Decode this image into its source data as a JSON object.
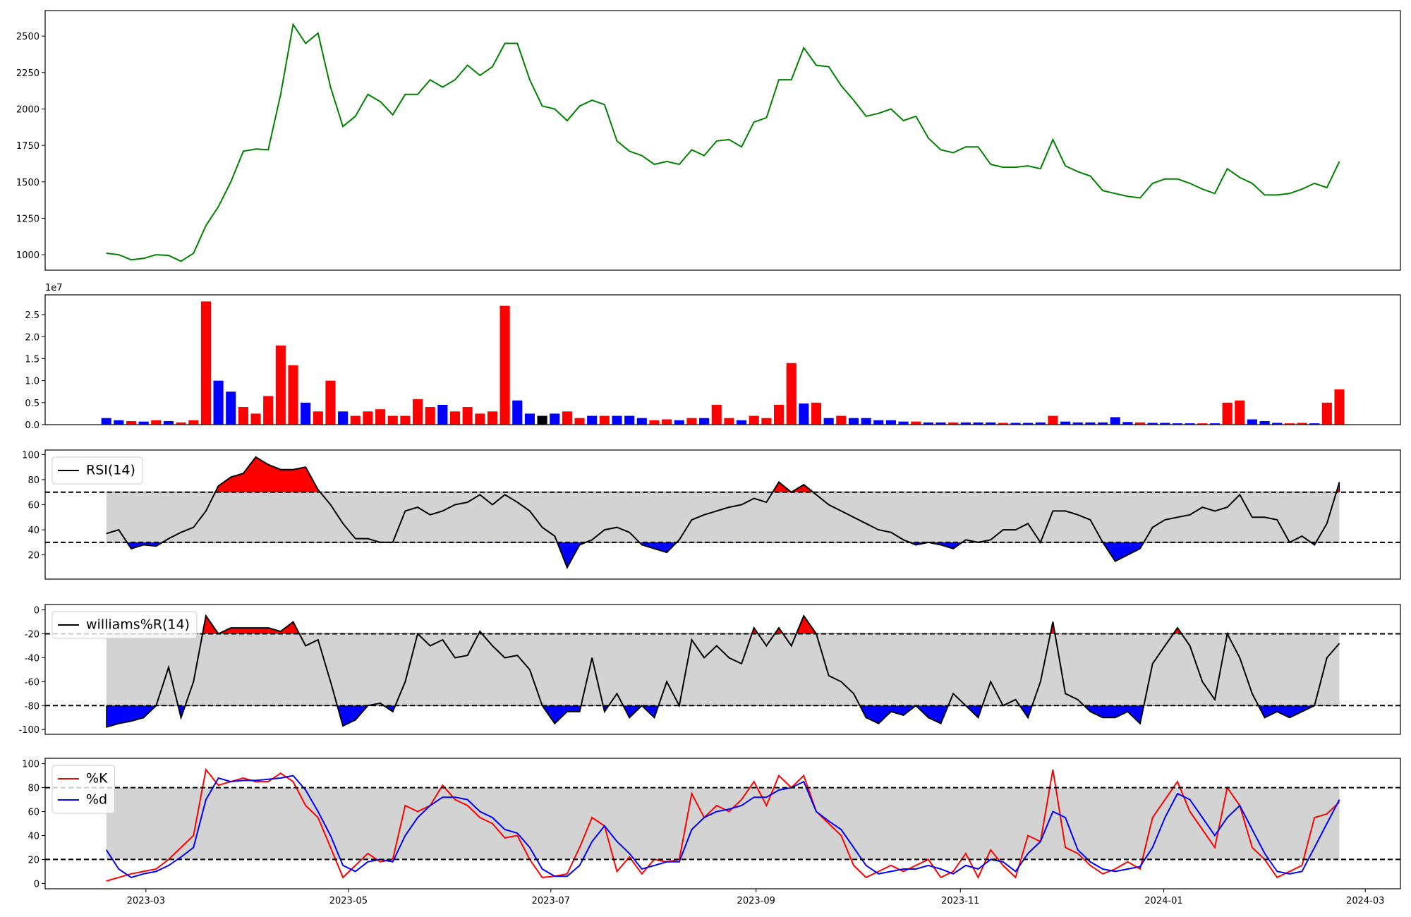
{
  "chart_data": [
    {
      "type": "line",
      "xlim": [
        -4.91,
        103.9
      ],
      "ylim": [
        894,
        2675
      ],
      "yticks": [
        1000,
        1250,
        1500,
        1750,
        2000,
        2250,
        2500
      ],
      "series": [
        {
          "color": "#008000",
          "values": [
            1010,
            1000,
            965,
            975,
            1000,
            995,
            955,
            1010,
            1200,
            1330,
            1500,
            1710,
            1725,
            1720,
            2100,
            2580,
            2450,
            2520,
            2150,
            1880,
            1950,
            2100,
            2050,
            1960,
            2100,
            2100,
            2200,
            2150,
            2200,
            2300,
            2230,
            2290,
            2450,
            2450,
            2200,
            2020,
            2000,
            1920,
            2020,
            2060,
            2030,
            1780,
            1710,
            1680,
            1620,
            1640,
            1620,
            1720,
            1680,
            1780,
            1790,
            1740,
            1910,
            1940,
            2200,
            2200,
            2420,
            2300,
            2290,
            2160,
            2060,
            1950,
            1970,
            2000,
            1920,
            1950,
            1800,
            1720,
            1700,
            1740,
            1740,
            1620,
            1600,
            1600,
            1610,
            1590,
            1790,
            1610,
            1570,
            1540,
            1440,
            1420,
            1400,
            1390,
            1490,
            1520,
            1520,
            1490,
            1450,
            1420,
            1590,
            1530,
            1490,
            1410,
            1410,
            1420,
            1450,
            1490,
            1460,
            1640
          ]
        }
      ]
    },
    {
      "type": "bar",
      "xlim": [
        -4.91,
        103.9
      ],
      "ylim": [
        0,
        2.95
      ],
      "offset_text": "1e7",
      "yticks": [
        {
          "value": 0,
          "label": "0.0"
        },
        {
          "value": 0.5,
          "label": "0.5"
        },
        {
          "value": 1,
          "label": "1.0"
        },
        {
          "value": 1.5,
          "label": "1.5"
        },
        {
          "value": 2,
          "label": "2.0"
        },
        {
          "value": 2.5,
          "label": "2.5"
        }
      ],
      "series": [
        {
          "values": [
            0.15,
            0.1,
            0.08,
            0.07,
            0.1,
            0.08,
            0.05,
            0.1,
            2.8,
            1.0,
            0.75,
            0.4,
            0.25,
            0.65,
            1.8,
            1.35,
            0.5,
            0.3,
            1.0,
            0.3,
            0.2,
            0.3,
            0.35,
            0.2,
            0.2,
            0.58,
            0.4,
            0.45,
            0.3,
            0.4,
            0.25,
            0.3,
            2.7,
            0.55,
            0.25,
            0.2,
            0.25,
            0.3,
            0.15,
            0.2,
            0.2,
            0.2,
            0.2,
            0.15,
            0.1,
            0.12,
            0.1,
            0.15,
            0.15,
            0.45,
            0.15,
            0.1,
            0.2,
            0.15,
            0.45,
            1.4,
            0.48,
            0.5,
            0.15,
            0.2,
            0.15,
            0.15,
            0.1,
            0.1,
            0.07,
            0.07,
            0.05,
            0.05,
            0.05,
            0.05,
            0.05,
            0.05,
            0.04,
            0.04,
            0.04,
            0.05,
            0.2,
            0.07,
            0.05,
            0.05,
            0.05,
            0.17,
            0.06,
            0.05,
            0.04,
            0.04,
            0.03,
            0.03,
            0.03,
            0.03,
            0.5,
            0.55,
            0.12,
            0.08,
            0.04,
            0.03,
            0.04,
            0.03,
            0.5,
            0.8
          ],
          "colors": [
            "blue",
            "blue",
            "red",
            "blue",
            "red",
            "blue",
            "red",
            "red",
            "red",
            "blue",
            "blue",
            "red",
            "red",
            "red",
            "red",
            "red",
            "blue",
            "red",
            "red",
            "blue",
            "red",
            "red",
            "red",
            "red",
            "red",
            "red",
            "red",
            "blue",
            "red",
            "red",
            "red",
            "red",
            "red",
            "blue",
            "blue",
            "black",
            "blue",
            "red",
            "red",
            "blue",
            "red",
            "blue",
            "blue",
            "blue",
            "red",
            "red",
            "blue",
            "red",
            "blue",
            "red",
            "red",
            "blue",
            "red",
            "red",
            "red",
            "red",
            "blue",
            "red",
            "blue",
            "red",
            "blue",
            "blue",
            "blue",
            "blue",
            "blue",
            "red",
            "blue",
            "blue",
            "red",
            "blue",
            "blue",
            "blue",
            "red",
            "blue",
            "blue",
            "blue",
            "red",
            "blue",
            "blue",
            "blue",
            "blue",
            "blue",
            "blue",
            "red",
            "blue",
            "blue",
            "blue",
            "blue",
            "red",
            "blue",
            "red",
            "red",
            "blue",
            "blue",
            "blue",
            "red",
            "red",
            "blue",
            "red",
            "red"
          ]
        }
      ]
    },
    {
      "type": "line",
      "xlim": [
        -4.91,
        103.9
      ],
      "ylim": [
        0.7,
        103.6
      ],
      "yticks": [
        20,
        40,
        60,
        80,
        100
      ],
      "hlines": [
        30,
        70
      ],
      "band_color": "#d3d3d3",
      "above_color": "red",
      "below_color": "blue",
      "legend": "upper left",
      "series": [
        {
          "name": "RSI(14)",
          "color": "black",
          "values": [
            37,
            40,
            25,
            28,
            27,
            33,
            38,
            42,
            55,
            75,
            82,
            85,
            98,
            92,
            88,
            88,
            90,
            72,
            60,
            45,
            33,
            33,
            30,
            30,
            55,
            58,
            52,
            55,
            60,
            62,
            68,
            60,
            68,
            62,
            55,
            42,
            35,
            10,
            28,
            32,
            40,
            42,
            38,
            28,
            25,
            22,
            32,
            48,
            52,
            55,
            58,
            60,
            65,
            62,
            78,
            70,
            76,
            68,
            60,
            55,
            50,
            45,
            40,
            38,
            32,
            28,
            30,
            28,
            25,
            32,
            30,
            32,
            40,
            40,
            45,
            30,
            55,
            55,
            52,
            48,
            30,
            15,
            20,
            25,
            42,
            48,
            50,
            52,
            58,
            55,
            58,
            68,
            50,
            50,
            48,
            30,
            35,
            28,
            45,
            78
          ]
        }
      ]
    },
    {
      "type": "line",
      "xlim": [
        -4.91,
        103.9
      ],
      "ylim": [
        -104,
        4.5
      ],
      "yticks": [
        -100,
        -80,
        -60,
        -40,
        -20,
        0
      ],
      "hlines": [
        -80,
        -20
      ],
      "band_color": "#d3d3d3",
      "above_color": "red",
      "below_color": "blue",
      "legend": "upper left",
      "series": [
        {
          "name": "williams%R(14)",
          "color": "black",
          "values": [
            -98,
            -95,
            -93,
            -90,
            -80,
            -48,
            -90,
            -60,
            -5,
            -20,
            -15,
            -15,
            -15,
            -15,
            -18,
            -10,
            -30,
            -25,
            -60,
            -97,
            -92,
            -80,
            -78,
            -85,
            -60,
            -20,
            -30,
            -25,
            -40,
            -38,
            -18,
            -30,
            -40,
            -38,
            -50,
            -80,
            -95,
            -85,
            -85,
            -40,
            -85,
            -70,
            -90,
            -80,
            -90,
            -60,
            -80,
            -25,
            -40,
            -30,
            -40,
            -45,
            -15,
            -30,
            -15,
            -30,
            -5,
            -20,
            -55,
            -60,
            -70,
            -90,
            -95,
            -85,
            -88,
            -80,
            -90,
            -95,
            -70,
            -80,
            -90,
            -60,
            -80,
            -75,
            -90,
            -60,
            -10,
            -70,
            -75,
            -85,
            -90,
            -90,
            -85,
            -95,
            -45,
            -30,
            -15,
            -30,
            -60,
            -75,
            -20,
            -40,
            -70,
            -90,
            -85,
            -90,
            -85,
            -80,
            -40,
            -28
          ]
        }
      ]
    },
    {
      "type": "line",
      "xlim": [
        -4.91,
        103.9
      ],
      "ylim": [
        -4.5,
        104.5
      ],
      "yticks": [
        0,
        20,
        40,
        60,
        80,
        100
      ],
      "hlines": [
        20,
        80
      ],
      "band_color": "#d3d3d3",
      "legend": "upper left",
      "xticks": [
        {
          "value": 3.18,
          "label": "2023-03"
        },
        {
          "value": 19.44,
          "label": "2023-05"
        },
        {
          "value": 35.69,
          "label": "2023-07"
        },
        {
          "value": 52.17,
          "label": "2023-09"
        },
        {
          "value": 68.57,
          "label": "2023-11"
        },
        {
          "value": 84.9,
          "label": "2024-01"
        },
        {
          "value": 101.08,
          "label": "2024-03"
        }
      ],
      "series": [
        {
          "name": "%K",
          "color": "red",
          "values": [
            2,
            5,
            8,
            10,
            12,
            20,
            30,
            40,
            95,
            82,
            85,
            88,
            85,
            85,
            92,
            85,
            65,
            55,
            30,
            5,
            15,
            25,
            18,
            20,
            65,
            60,
            65,
            82,
            70,
            65,
            55,
            50,
            38,
            40,
            20,
            5,
            6,
            8,
            30,
            55,
            48,
            10,
            22,
            8,
            20,
            18,
            20,
            75,
            55,
            65,
            60,
            70,
            85,
            65,
            90,
            80,
            90,
            60,
            50,
            40,
            15,
            5,
            10,
            15,
            10,
            15,
            20,
            5,
            10,
            25,
            5,
            28,
            15,
            5,
            40,
            35,
            95,
            30,
            25,
            15,
            8,
            12,
            18,
            12,
            55,
            70,
            85,
            60,
            45,
            30,
            80,
            65,
            30,
            20,
            5,
            10,
            15,
            55,
            58,
            68
          ]
        },
        {
          "name": "%d",
          "color": "blue",
          "values": [
            28,
            12,
            5,
            8,
            10,
            15,
            22,
            30,
            70,
            88,
            85,
            86,
            86,
            87,
            88,
            90,
            78,
            60,
            40,
            15,
            10,
            18,
            20,
            18,
            40,
            55,
            65,
            72,
            72,
            70,
            60,
            55,
            45,
            42,
            30,
            12,
            6,
            6,
            15,
            35,
            48,
            35,
            25,
            12,
            15,
            18,
            18,
            45,
            55,
            60,
            62,
            65,
            72,
            72,
            78,
            80,
            85,
            60,
            52,
            45,
            30,
            15,
            8,
            10,
            12,
            12,
            15,
            12,
            8,
            15,
            12,
            20,
            18,
            10,
            25,
            35,
            60,
            55,
            28,
            18,
            12,
            10,
            12,
            14,
            30,
            55,
            75,
            70,
            55,
            40,
            55,
            65,
            45,
            25,
            10,
            8,
            10,
            30,
            50,
            70
          ]
        }
      ]
    }
  ]
}
